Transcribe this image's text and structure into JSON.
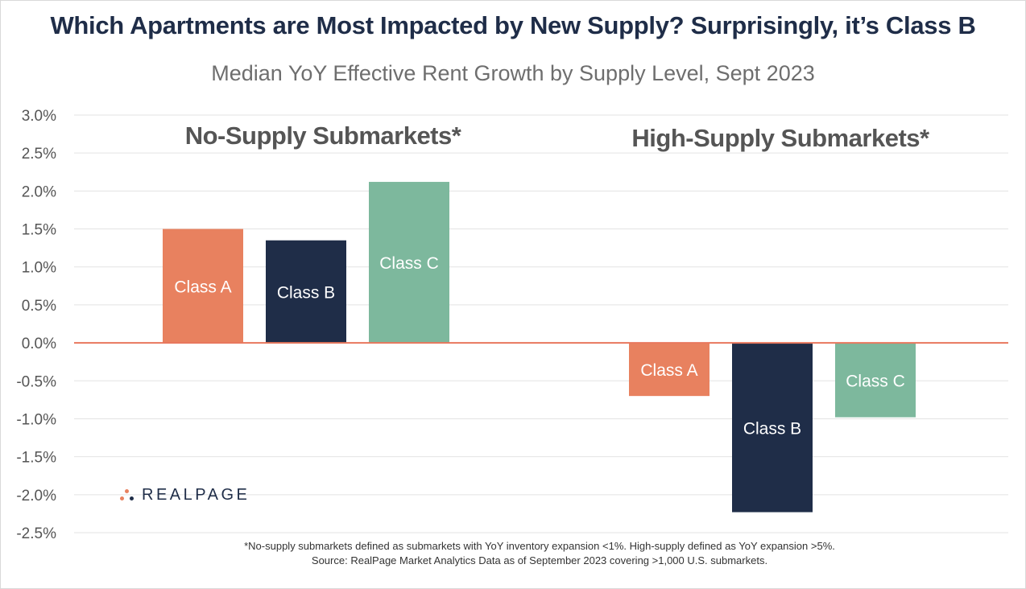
{
  "title": "Which Apartments are Most Impacted by New Supply? Surprisingly, it’s Class B",
  "subtitle": "Median YoY Effective Rent Growth by Supply Level, Sept 2023",
  "colors": {
    "class_a": "#e8815f",
    "class_b": "#1f2d48",
    "class_c": "#7db89d",
    "zero_line": "#e8775d"
  },
  "chart_data": {
    "type": "bar",
    "ylim": [
      -2.5,
      3.0
    ],
    "yticks": [
      "3.0%",
      "2.5%",
      "2.0%",
      "1.5%",
      "1.0%",
      "0.5%",
      "0.0%",
      "-0.5%",
      "-1.0%",
      "-1.5%",
      "-2.0%",
      "-2.5%"
    ],
    "ytick_values": [
      3.0,
      2.5,
      2.0,
      1.5,
      1.0,
      0.5,
      0.0,
      -0.5,
      -1.0,
      -1.5,
      -2.0,
      -2.5
    ],
    "grid": true,
    "groups": [
      {
        "name": "No-Supply Submarkets*",
        "bars": [
          {
            "label": "Class A",
            "value": 1.5
          },
          {
            "label": "Class B",
            "value": 1.35
          },
          {
            "label": "Class C",
            "value": 2.12
          }
        ]
      },
      {
        "name": "High-Supply Submarkets*",
        "bars": [
          {
            "label": "Class A",
            "value": -0.7
          },
          {
            "label": "Class B",
            "value": -2.23
          },
          {
            "label": "Class C",
            "value": -0.98
          }
        ]
      }
    ]
  },
  "logo": {
    "text": "REALPAGE"
  },
  "footnote": {
    "line1": "*No-supply submarkets defined as submarkets with YoY inventory expansion <1%. High-supply defined as YoY expansion >5%.",
    "line2": "Source: RealPage Market Analytics Data as of September 2023 covering >1,000 U.S. submarkets."
  }
}
